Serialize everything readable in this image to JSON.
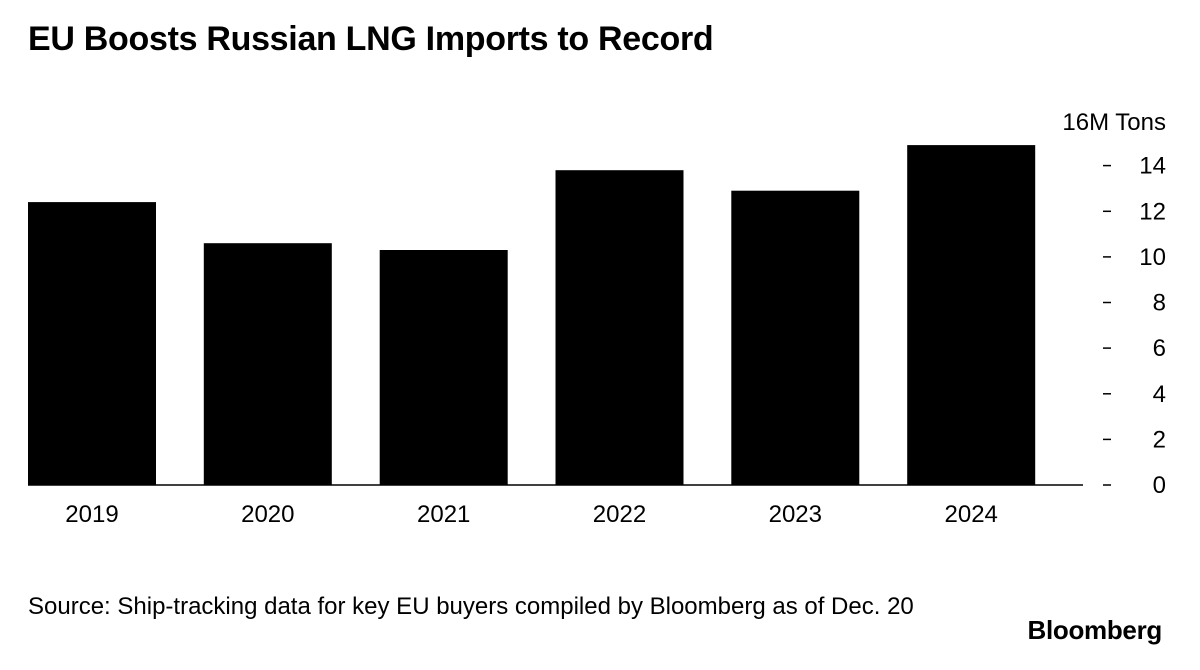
{
  "title": "EU Boosts Russian LNG Imports to Record",
  "source": "Source: Ship-tracking data for key EU buyers compiled by Bloomberg as of Dec. 20",
  "brand": "Bloomberg",
  "chart_data": {
    "type": "bar",
    "title": "EU Boosts Russian LNG Imports to Record",
    "unit_label": "16M Tons",
    "categories": [
      "2019",
      "2020",
      "2021",
      "2022",
      "2023",
      "2024"
    ],
    "values": [
      12.4,
      10.6,
      10.3,
      13.8,
      12.9,
      14.9
    ],
    "ylim": [
      0,
      16
    ],
    "yticks": [
      0,
      2,
      4,
      6,
      8,
      10,
      12,
      14
    ],
    "y_axis_position": "right",
    "bar_color": "#000000",
    "grid": false
  }
}
